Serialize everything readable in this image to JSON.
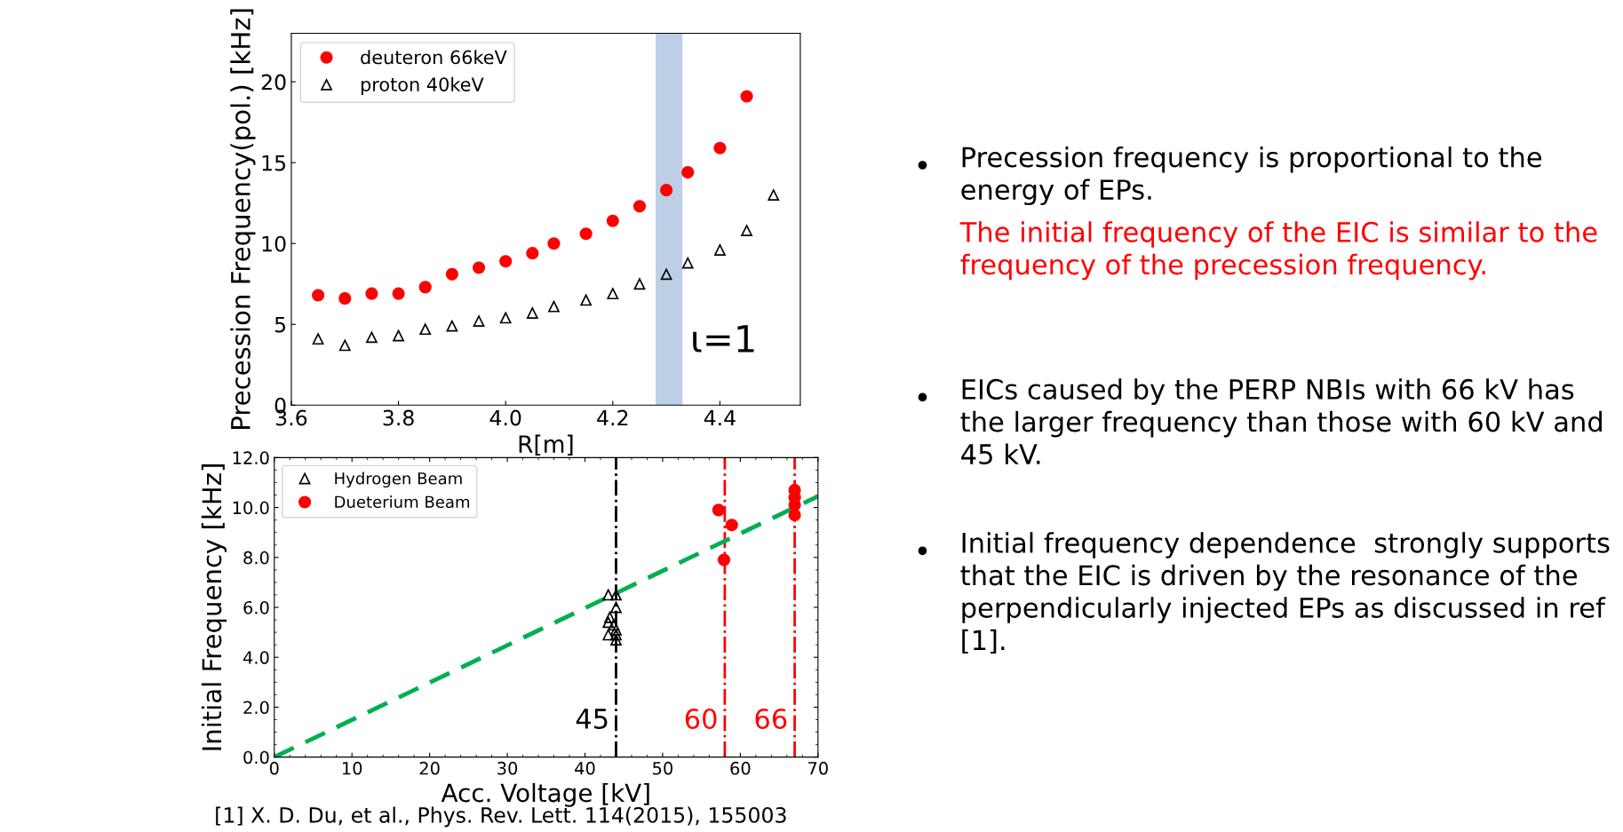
{
  "chart_data": [
    {
      "type": "scatter",
      "xlabel": "R[m]",
      "ylabel": "Precession Frequency(pol.) [kHz]",
      "xlim": [
        3.6,
        4.55
      ],
      "ylim": [
        0,
        23
      ],
      "xticks": [
        {
          "value": 3.6,
          "label": "3.6"
        },
        {
          "value": 3.8,
          "label": "3.8"
        },
        {
          "value": 4.0,
          "label": "4.0"
        },
        {
          "value": 4.2,
          "label": "4.2"
        },
        {
          "value": 4.4,
          "label": "4.4"
        }
      ],
      "yticks": [
        0,
        5,
        10,
        15,
        20
      ],
      "legend": "top left",
      "bands": [
        {
          "axis": "x",
          "from": 4.28,
          "to": 4.33,
          "label": "ι=1",
          "color": "#a7bfdf"
        }
      ],
      "series": [
        {
          "name": "deuteron 66keV",
          "color": "#ff0000",
          "marker": "circle",
          "x": [
            3.65,
            3.7,
            3.75,
            3.8,
            3.85,
            3.9,
            3.95,
            4.0,
            4.05,
            4.09,
            4.15,
            4.2,
            4.25,
            4.3,
            4.34,
            4.4,
            4.45
          ],
          "values": [
            6.8,
            6.6,
            6.9,
            6.9,
            7.3,
            8.1,
            8.5,
            8.9,
            9.4,
            10.0,
            10.6,
            11.4,
            12.3,
            13.3,
            14.4,
            15.9,
            19.1
          ]
        },
        {
          "name": "proton 40keV",
          "color": "#000000",
          "marker": "triangle",
          "x": [
            3.65,
            3.7,
            3.75,
            3.8,
            3.85,
            3.9,
            3.95,
            4.0,
            4.05,
            4.09,
            4.15,
            4.2,
            4.25,
            4.3,
            4.34,
            4.4,
            4.45,
            4.5
          ],
          "values": [
            4.1,
            3.7,
            4.2,
            4.3,
            4.7,
            4.9,
            5.2,
            5.4,
            5.7,
            6.1,
            6.5,
            6.9,
            7.5,
            8.1,
            8.8,
            9.6,
            10.8,
            13.0
          ]
        }
      ]
    },
    {
      "type": "scatter",
      "xlabel": "Acc. Voltage [kV]",
      "ylabel": "Initial Frequency [kHz]",
      "xlim": [
        0,
        70
      ],
      "ylim": [
        0,
        12
      ],
      "xticks": [
        0,
        10,
        20,
        30,
        40,
        50,
        60,
        70
      ],
      "yticks": [
        {
          "value": 0,
          "label": "0.0"
        },
        {
          "value": 2,
          "label": "2.0"
        },
        {
          "value": 4,
          "label": "4.0"
        },
        {
          "value": 6,
          "label": "6.0"
        },
        {
          "value": 8,
          "label": "8.0"
        },
        {
          "value": 10,
          "label": "10.0"
        },
        {
          "value": 12,
          "label": "12.0"
        }
      ],
      "legend": "top left",
      "ref_lines": [
        {
          "axis": "x",
          "value": 44,
          "color": "#000000",
          "line_style": "dashdot"
        },
        {
          "axis": "x",
          "value": 58,
          "color": "#ff0000",
          "line_style": "dashdot"
        },
        {
          "axis": "x",
          "value": 67,
          "color": "#ff0000",
          "line_style": "dashdot"
        }
      ],
      "annotations": [
        "[1] X. D. Du, et al., Phys. Rev. Lett. 114(2015), 155003",
        "45",
        "60",
        "66"
      ],
      "series": [
        {
          "name": "Hydrogen Beam",
          "color": "#000000",
          "marker": "triangle",
          "x": [
            43,
            44,
            44,
            43.2,
            43,
            43.7,
            44,
            43,
            44,
            44
          ],
          "values": [
            6.5,
            6.5,
            6.0,
            5.6,
            5.4,
            5.3,
            5.1,
            4.9,
            4.9,
            4.7
          ]
        },
        {
          "name": "Dueterium Beam",
          "color": "#ff0000",
          "marker": "circle",
          "x": [
            57.2,
            57.9,
            58.9,
            67,
            67,
            67,
            67
          ],
          "values": [
            9.9,
            7.9,
            9.3,
            10.7,
            10.4,
            10.1,
            9.7
          ]
        },
        {
          "type": "line",
          "color": "#00b050",
          "line_style": "dashed",
          "marker": "none",
          "x": [
            0,
            70
          ],
          "values": [
            0,
            10.45
          ]
        }
      ]
    },
    {
      "type": "other",
      "annotations": [
        "Precession frequency is proportional to the energy of EPs.",
        "The initial frequency of the EIC is similar to the frequency of the precession frequency.",
        "EICs caused by the PERP NBIs with 66 kV has the larger frequency than those with 60 kV and 45 kV.",
        "Initial frequency dependence  strongly supports that the EIC is driven by the resonance of the perpendicularly injected EPs as discussed in ref [1]."
      ]
    }
  ]
}
